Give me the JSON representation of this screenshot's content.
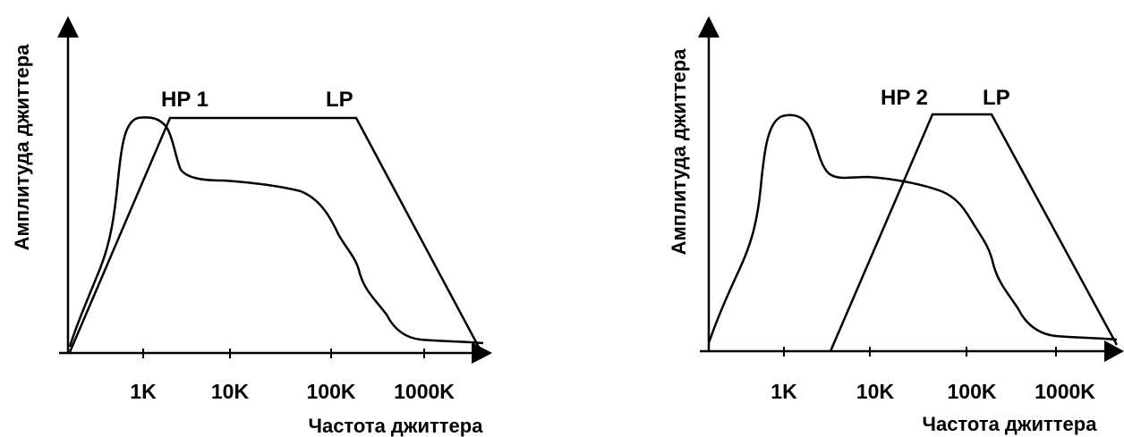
{
  "diagrams": [
    {
      "id": "left",
      "y_axis_label": "Амплитуда джиттера",
      "x_axis_label": "Частота джиттера",
      "x_ticks": [
        "1K",
        "10K",
        "100K",
        "1000K"
      ],
      "filter_labels": {
        "high_pass": "HP 1",
        "low_pass": "LP"
      }
    },
    {
      "id": "right",
      "y_axis_label": "Амплитуда джиттера",
      "x_axis_label": "Частота джиттера",
      "x_ticks": [
        "1K",
        "10K",
        "100K",
        "1000K"
      ],
      "filter_labels": {
        "high_pass": "HP 2",
        "low_pass": "LP"
      }
    }
  ]
}
